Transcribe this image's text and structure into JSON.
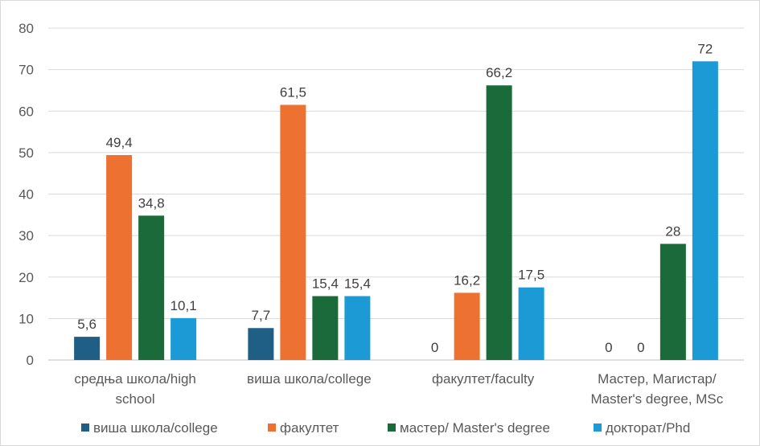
{
  "chart_data": {
    "type": "bar",
    "categories": [
      [
        "средња школа/high",
        "school"
      ],
      [
        "виша школа/college"
      ],
      [
        "факултет/faculty"
      ],
      [
        "Мастер, Магистар/",
        "Master's degree, MSc"
      ]
    ],
    "series": [
      {
        "name": "виша школа/college",
        "color": "#1f5f85",
        "values": [
          5.6,
          7.7,
          0,
          0
        ]
      },
      {
        "name": "факултет",
        "color": "#ed7130",
        "values": [
          49.4,
          61.5,
          16.2,
          0
        ]
      },
      {
        "name": "мастер/ Master's degree",
        "color": "#1b6b3a",
        "values": [
          34.8,
          15.4,
          66.2,
          28
        ]
      },
      {
        "name": "докторат/Phd",
        "color": "#1c9ad6",
        "values": [
          10.1,
          15.4,
          17.5,
          72
        ]
      }
    ],
    "data_labels": [
      [
        "5,6",
        "7,7",
        "0",
        "0"
      ],
      [
        "49,4",
        "61,5",
        "16,2",
        "0"
      ],
      [
        "34,8",
        "15,4",
        "66,2",
        "28"
      ],
      [
        "10,1",
        "15,4",
        "17,5",
        "72"
      ]
    ],
    "ylim": [
      0,
      80
    ],
    "yticks": [
      0,
      10,
      20,
      30,
      40,
      50,
      60,
      70,
      80
    ],
    "grid": true,
    "legend_position": "bottom"
  }
}
